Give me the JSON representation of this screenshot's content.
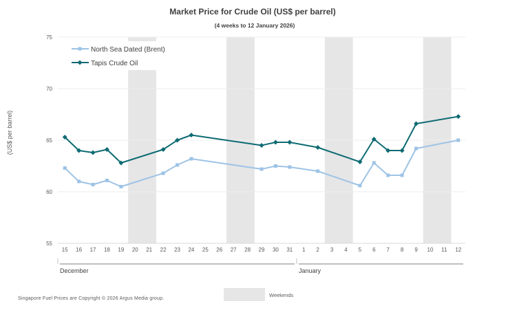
{
  "chart_data": {
    "type": "line",
    "title": "Market Price for  Crude Oil  (US$ per barrel)",
    "subtitle": "(4 weeks to 12 January 2026)",
    "ylabel": "(US$ per barrel)",
    "xlabel": "",
    "ylim": [
      55,
      75
    ],
    "yticks": [
      55,
      60,
      65,
      70,
      75
    ],
    "grid": true,
    "categories": [
      "15",
      "16",
      "17",
      "18",
      "19",
      "20",
      "21",
      "22",
      "23",
      "24",
      "25",
      "26",
      "27",
      "28",
      "29",
      "30",
      "31",
      "1",
      "2",
      "3",
      "4",
      "5",
      "6",
      "7",
      "8",
      "9",
      "10",
      "11",
      "12"
    ],
    "month_labels": [
      {
        "label": "December",
        "start": 0,
        "end": 16
      },
      {
        "label": "January",
        "start": 17,
        "end": 28
      }
    ],
    "weekends": [
      [
        5,
        6
      ],
      [
        12,
        13
      ],
      [
        19,
        20
      ],
      [
        26,
        27
      ]
    ],
    "series": [
      {
        "name": "North Sea Dated (Brent)",
        "color": "#9DC3E6",
        "marker": "square",
        "values": [
          62.3,
          61.0,
          60.7,
          61.1,
          60.5,
          null,
          null,
          61.8,
          62.6,
          63.2,
          null,
          null,
          null,
          null,
          62.2,
          62.5,
          62.4,
          null,
          62.0,
          null,
          null,
          60.6,
          62.8,
          61.6,
          61.6,
          64.2,
          null,
          null,
          65.0
        ]
      },
      {
        "name": "Tapis Crude Oil",
        "color": "#0E6B73",
        "marker": "diamond",
        "values": [
          65.3,
          64.0,
          63.8,
          64.1,
          62.8,
          null,
          null,
          64.1,
          65.0,
          65.5,
          null,
          null,
          null,
          null,
          64.5,
          64.8,
          64.8,
          null,
          64.3,
          null,
          null,
          62.9,
          65.1,
          64.0,
          64.0,
          66.6,
          null,
          null,
          67.3
        ]
      }
    ]
  },
  "legend": {
    "weekends_label": "Weekends"
  },
  "footer": {
    "copyright": "Singapore  Fuel  Prices  are  Copyright  © 2026  Argus  Media  group."
  },
  "colors": {
    "weekend_fill": "#E6E6E6",
    "grid": "#EDEDED",
    "axis": "#7F7F7F"
  }
}
